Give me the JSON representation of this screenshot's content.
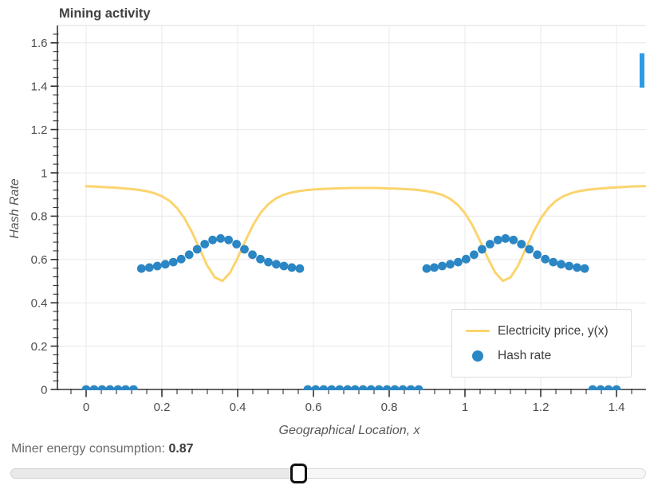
{
  "chart": {
    "title": "Mining activity",
    "legend": [
      {
        "label": "Electricity price, y(x)",
        "marker": "line",
        "color": "#fbd46e"
      },
      {
        "label": "Hash rate",
        "marker": "point",
        "color": "#2b86c4"
      }
    ]
  },
  "chart_data": {
    "type": "line+scatter",
    "title": "Mining activity",
    "xlabel": "Geographical Location, x",
    "ylabel": "Hash Rate",
    "xlim": [
      -0.076,
      1.478
    ],
    "ylim": [
      0,
      1.68
    ],
    "grid": true,
    "legend_position": "bottom-right",
    "x_major_ticks": [
      0,
      0.2,
      0.4,
      0.6,
      0.8,
      1,
      1.2,
      1.4
    ],
    "x_tick_labels": [
      "0",
      "0.2",
      "0.4",
      "0.6",
      "0.8",
      "1",
      "1.2",
      "1.4"
    ],
    "x_minor_step": 0.04,
    "y_major_ticks": [
      0,
      0.2,
      0.4,
      0.6,
      0.8,
      1,
      1.2,
      1.4,
      1.6
    ],
    "y_tick_labels": [
      "0",
      "0.2",
      "0.4",
      "0.6",
      "0.8",
      "1",
      "1.2",
      "1.4",
      "1.6"
    ],
    "y_minor_step": 0.04,
    "series": [
      {
        "name": "Electricity price, y(x)",
        "type": "line",
        "color": "#fbd46e",
        "x_start": 0,
        "x_step": 0.02,
        "y": [
          0.938,
          0.937,
          0.935,
          0.933,
          0.931,
          0.928,
          0.925,
          0.921,
          0.915,
          0.906,
          0.892,
          0.871,
          0.837,
          0.789,
          0.724,
          0.647,
          0.571,
          0.517,
          0.501,
          0.539,
          0.607,
          0.685,
          0.757,
          0.814,
          0.854,
          0.881,
          0.898,
          0.908,
          0.915,
          0.92,
          0.923,
          0.925,
          0.927,
          0.928,
          0.929,
          0.93,
          0.93,
          0.93,
          0.93,
          0.929,
          0.928,
          0.927,
          0.925,
          0.923,
          0.92,
          0.915,
          0.908,
          0.898,
          0.881,
          0.854,
          0.814,
          0.757,
          0.685,
          0.607,
          0.539,
          0.501,
          0.517,
          0.571,
          0.647,
          0.724,
          0.789,
          0.837,
          0.871,
          0.892,
          0.906,
          0.915,
          0.921,
          0.925,
          0.928,
          0.931,
          0.933,
          0.935,
          0.937,
          0.938,
          0.939
        ]
      },
      {
        "name": "Hash rate",
        "type": "scatter",
        "color": "#2b86c4",
        "x": [
          0.0,
          0.021,
          0.042,
          0.063,
          0.084,
          0.104,
          0.125,
          0.146,
          0.167,
          0.188,
          0.209,
          0.23,
          0.251,
          0.272,
          0.293,
          0.313,
          0.334,
          0.355,
          0.376,
          0.397,
          0.418,
          0.439,
          0.46,
          0.481,
          0.502,
          0.522,
          0.543,
          0.564,
          0.585,
          0.606,
          0.627,
          0.648,
          0.669,
          0.69,
          0.71,
          0.731,
          0.752,
          0.773,
          0.794,
          0.815,
          0.836,
          0.857,
          0.878,
          0.899,
          0.919,
          0.94,
          0.961,
          0.982,
          1.003,
          1.024,
          1.045,
          1.066,
          1.087,
          1.107,
          1.128,
          1.149,
          1.17,
          1.191,
          1.212,
          1.233,
          1.254,
          1.275,
          1.296,
          1.316,
          1.337,
          1.358,
          1.379,
          1.4
        ],
        "y": [
          0,
          0,
          0,
          0,
          0,
          0,
          0,
          0.558,
          0.563,
          0.57,
          0.578,
          0.588,
          0.602,
          0.622,
          0.647,
          0.671,
          0.69,
          0.697,
          0.69,
          0.671,
          0.647,
          0.622,
          0.602,
          0.588,
          0.578,
          0.57,
          0.563,
          0.558,
          0,
          0,
          0,
          0,
          0,
          0,
          0,
          0,
          0,
          0,
          0,
          0,
          0,
          0,
          0,
          0.558,
          0.563,
          0.57,
          0.578,
          0.588,
          0.602,
          0.622,
          0.647,
          0.671,
          0.69,
          0.697,
          0.69,
          0.671,
          0.647,
          0.622,
          0.602,
          0.588,
          0.578,
          0.57,
          0.563,
          0.558,
          0,
          0,
          0,
          0
        ]
      }
    ]
  },
  "controls": {
    "consumption_label": "Miner energy consumption: ",
    "consumption_value": "0.87",
    "slider": {
      "percent": 45.3
    }
  },
  "misc": {
    "edge_bar_color": "#2d9ce6",
    "grid_color": "#e8e8e8",
    "axis_color": "#333333",
    "tick_label_color": "#4d4d4d",
    "axis_title_color": "#575757",
    "title_color": "#424242"
  }
}
